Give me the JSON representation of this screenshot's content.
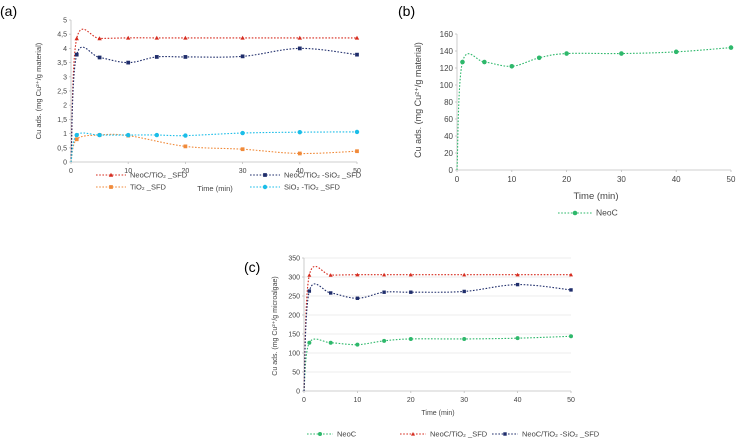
{
  "chart_data": [
    {
      "panel": "(a)",
      "type": "line",
      "xlabel": "Time (min)",
      "ylabel": "Cu ads. (mg Cu²⁺/g material)",
      "xlim": [
        0,
        50
      ],
      "ylim": [
        0,
        5
      ],
      "xticks": [
        0,
        10,
        20,
        30,
        40,
        50
      ],
      "yticks": [
        "0",
        "0,5",
        "1",
        "1,5",
        "2",
        "2,5",
        "3",
        "3,5",
        "4",
        "4,5",
        "5"
      ],
      "grid": false,
      "legend_position": "bottom",
      "x": [
        0,
        1,
        5,
        10,
        15,
        20,
        30,
        40,
        50
      ],
      "series": [
        {
          "name": "NeoC/TiO₂ _SFD",
          "color": "#d62b1e",
          "marker": "triangle",
          "values": [
            0,
            4.35,
            4.35,
            4.37,
            4.37,
            4.37,
            4.37,
            4.37,
            4.37
          ]
        },
        {
          "name": "NeoC/TiO₂ -SiO₂ _SFD",
          "color": "#1f2d6b",
          "marker": "square",
          "values": [
            0,
            3.78,
            3.68,
            3.5,
            3.7,
            3.7,
            3.72,
            4.0,
            3.78
          ]
        },
        {
          "name": "TiO₂ _SFD",
          "color": "#f08a3a",
          "marker": "square",
          "values": [
            0,
            0.8,
            0.95,
            0.93,
            null,
            0.55,
            0.45,
            0.3,
            0.38
          ]
        },
        {
          "name": "SiO₂ -TiO₂ _SFD",
          "color": "#1bbde8",
          "marker": "circle",
          "values": [
            0,
            0.95,
            0.95,
            0.95,
            0.95,
            0.93,
            1.02,
            1.05,
            1.06
          ]
        }
      ]
    },
    {
      "panel": "(b)",
      "type": "line",
      "xlabel": "Time (min)",
      "ylabel": "Cu ads. (mg Cu²⁺/g material)",
      "xlim": [
        0,
        50
      ],
      "ylim": [
        0,
        160
      ],
      "xticks": [
        0,
        10,
        20,
        30,
        40,
        50
      ],
      "yticks": [
        "0",
        "20",
        "40",
        "60",
        "80",
        "100",
        "120",
        "140",
        "160"
      ],
      "grid": false,
      "legend_position": "bottom",
      "x": [
        0,
        1,
        5,
        10,
        15,
        20,
        30,
        40,
        50
      ],
      "series": [
        {
          "name": "NeoC",
          "color": "#2eb86b",
          "marker": "circle",
          "values": [
            0,
            127,
            127,
            122,
            132,
            137,
            137,
            139,
            144
          ]
        }
      ]
    },
    {
      "panel": "(c)",
      "type": "line",
      "xlabel": "Time (min)",
      "ylabel": "Cu ads. (mg Cu²⁺/g microalgae)",
      "xlim": [
        0,
        50
      ],
      "ylim": [
        0,
        350
      ],
      "xticks": [
        0,
        10,
        20,
        30,
        40,
        50
      ],
      "yticks": [
        "0",
        "50",
        "100",
        "150",
        "200",
        "250",
        "300",
        "350"
      ],
      "grid": true,
      "legend_position": "bottom",
      "x": [
        0,
        1,
        5,
        10,
        15,
        20,
        30,
        40,
        50
      ],
      "series": [
        {
          "name": "NeoC",
          "color": "#2eb86b",
          "marker": "circle",
          "values": [
            0,
            127,
            127,
            122,
            132,
            137,
            137,
            139,
            144
          ]
        },
        {
          "name": "NeoC/TiO₂ _SFD",
          "color": "#d62b1e",
          "marker": "triangle",
          "values": [
            0,
            305,
            305,
            306,
            306,
            306,
            306,
            306,
            306
          ]
        },
        {
          "name": "NeoC/TiO₂ -SiO₂ _SFD",
          "color": "#1f2d6b",
          "marker": "square",
          "values": [
            0,
            263,
            258,
            244,
            260,
            260,
            262,
            280,
            266
          ]
        }
      ]
    }
  ]
}
